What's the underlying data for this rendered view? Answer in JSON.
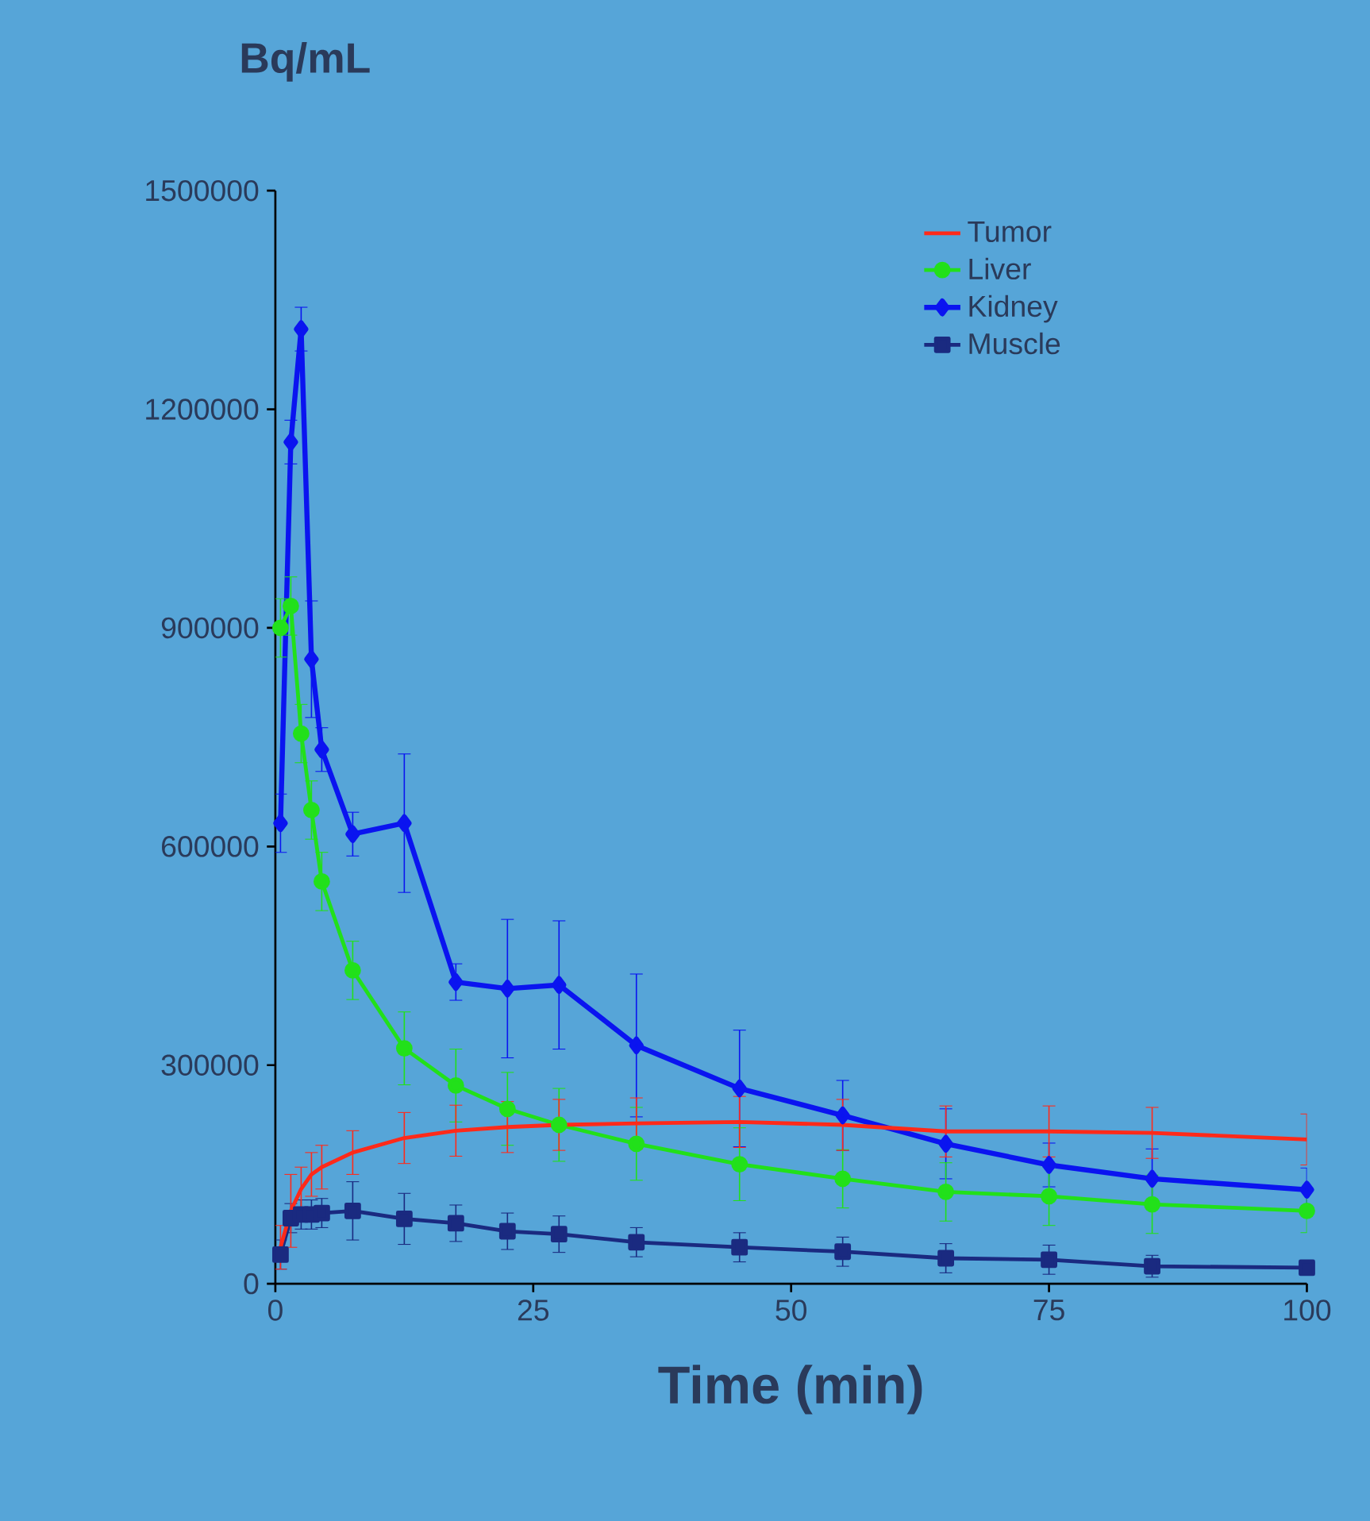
{
  "chart_data": {
    "type": "line",
    "ylabel": "Bq/mL",
    "xlabel": "Time (min)",
    "x": [
      0.5,
      1.5,
      2.5,
      3.5,
      4.5,
      7.5,
      12.5,
      17.5,
      22.5,
      27.5,
      35,
      45,
      55,
      65,
      75,
      85,
      100
    ],
    "xlim": [
      0,
      100
    ],
    "xticks": [
      0,
      25,
      50,
      75,
      100
    ],
    "ylim": [
      0,
      1500000
    ],
    "yticks": [
      0,
      300000,
      600000,
      900000,
      1200000,
      1500000
    ],
    "legend": "top right",
    "grid": false,
    "series": [
      {
        "name": "Tumor",
        "color": "#ff2a1a",
        "marker": "none",
        "values": [
          50000,
          100000,
          130000,
          150000,
          160000,
          180000,
          200000,
          210000,
          215000,
          218000,
          220000,
          222000,
          218000,
          209000,
          209000,
          207000,
          198000
        ],
        "errors": [
          30000,
          50000,
          30000,
          30000,
          30000,
          30000,
          35000,
          35000,
          35000,
          35000,
          35000,
          35000,
          35000,
          35000,
          35000,
          35000,
          35000
        ]
      },
      {
        "name": "Liver",
        "color": "#22e01a",
        "marker": "circle",
        "values": [
          900000,
          930000,
          755000,
          650000,
          552000,
          430000,
          323000,
          272000,
          240000,
          218000,
          192000,
          164000,
          144000,
          126000,
          120000,
          109000,
          100000
        ],
        "errors": [
          40000,
          40000,
          40000,
          40000,
          40000,
          40000,
          50000,
          50000,
          50000,
          50000,
          50000,
          50000,
          40000,
          40000,
          40000,
          40000,
          30000
        ]
      },
      {
        "name": "Kidney",
        "color": "#0a14f0",
        "marker": "diamond",
        "values": [
          632000,
          1155000,
          1310000,
          857000,
          733000,
          617000,
          632000,
          414000,
          405000,
          410000,
          327000,
          268000,
          231000,
          192000,
          163000,
          144000,
          129000
        ],
        "errors": [
          40000,
          30000,
          30000,
          80000,
          30000,
          30000,
          95000,
          25000,
          95000,
          88000,
          98000,
          80000,
          48000,
          48000,
          30000,
          41000,
          30000
        ]
      },
      {
        "name": "Muscle",
        "color": "#1a2a80",
        "marker": "square",
        "values": [
          40000,
          90000,
          95000,
          95000,
          97000,
          100000,
          89000,
          83000,
          72000,
          68000,
          57000,
          50000,
          44000,
          35000,
          33000,
          24000,
          22000
        ],
        "errors": [
          20000,
          20000,
          20000,
          20000,
          20000,
          40000,
          35000,
          25000,
          25000,
          25000,
          20000,
          20000,
          20000,
          20000,
          20000,
          15000,
          10000
        ]
      }
    ]
  }
}
